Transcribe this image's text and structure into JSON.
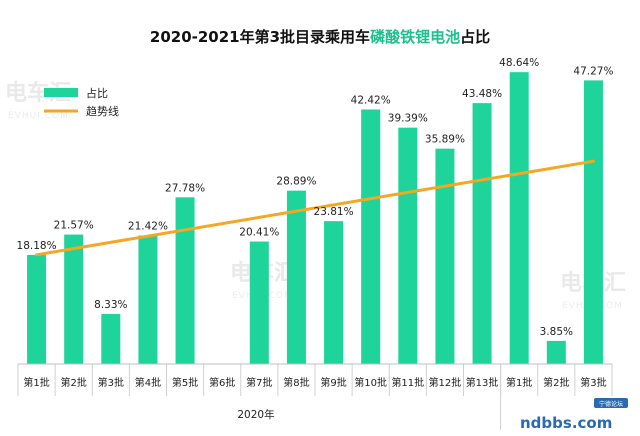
{
  "chart_data": {
    "type": "bar",
    "title_prefix": "2020-2021年第3批目录乘用车",
    "title_highlight": "磷酸铁锂电池",
    "title_suffix": "占比",
    "highlight_color": "#1fbf8f",
    "bar_color": "#1ed49a",
    "trend_color": "#f5a623",
    "categories": [
      "第1批",
      "第2批",
      "第3批",
      "第4批",
      "第5批",
      "第6批",
      "第7批",
      "第8批",
      "第9批",
      "第10批",
      "第11批",
      "第12批",
      "第13批",
      "第1批",
      "第2批",
      "第3批"
    ],
    "values": [
      18.18,
      21.57,
      8.33,
      21.42,
      27.78,
      0,
      20.41,
      28.89,
      23.81,
      42.42,
      39.39,
      35.89,
      43.48,
      48.64,
      3.85,
      47.27
    ],
    "value_labels": [
      "18.18%",
      "21.57%",
      "8.33%",
      "21.42%",
      "27.78%",
      "",
      "20.41%",
      "28.89%",
      "23.81%",
      "42.42%",
      "39.39%",
      "35.89%",
      "43.48%",
      "48.64%",
      "3.85%",
      "47.27%"
    ],
    "series_name": "占比",
    "trend_name": "趋势线",
    "trend_start": 18.2,
    "trend_end": 33.8,
    "ylim": [
      0,
      50
    ],
    "group_label": "2020年",
    "legend_position": "top-left"
  },
  "watermarks": {
    "brand": "电车汇",
    "site": "EVHUI.COM"
  },
  "site_badge": {
    "text": "ndbbs.com",
    "sub": "宁德论坛"
  }
}
